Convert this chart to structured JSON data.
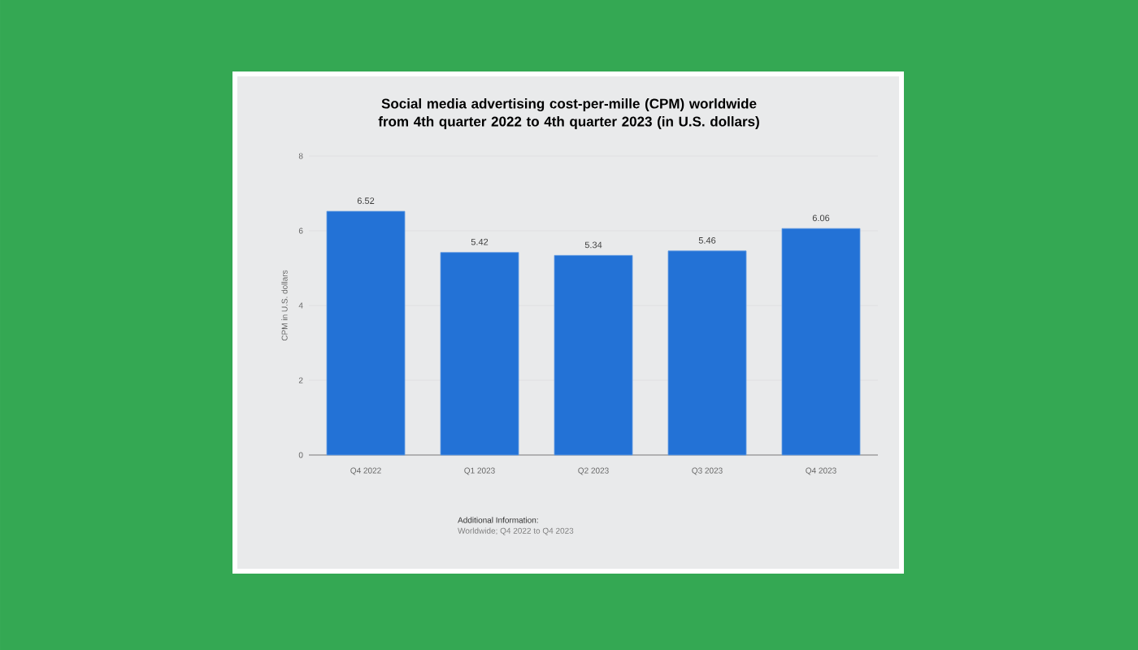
{
  "chart_data": {
    "type": "bar",
    "title": "Social media advertising cost-per-mille (CPM) worldwide from 4th quarter 2022 to 4th quarter 2023 (in U.S. dollars)",
    "ylabel": "CPM in U.S. dollars",
    "categories": [
      "Q4 2022",
      "Q1 2023",
      "Q2 2023",
      "Q3 2023",
      "Q4 2023"
    ],
    "values": [
      6.52,
      5.42,
      5.34,
      5.46,
      6.06
    ],
    "color": "#2372d6",
    "ylim": [
      0,
      8
    ],
    "yticks": [
      0,
      2,
      4,
      6,
      8
    ],
    "grid": "y",
    "data_labels": true,
    "annotations": [
      "Additional Information:",
      "Worldwide; Q4 2022 to Q4 2023"
    ]
  }
}
